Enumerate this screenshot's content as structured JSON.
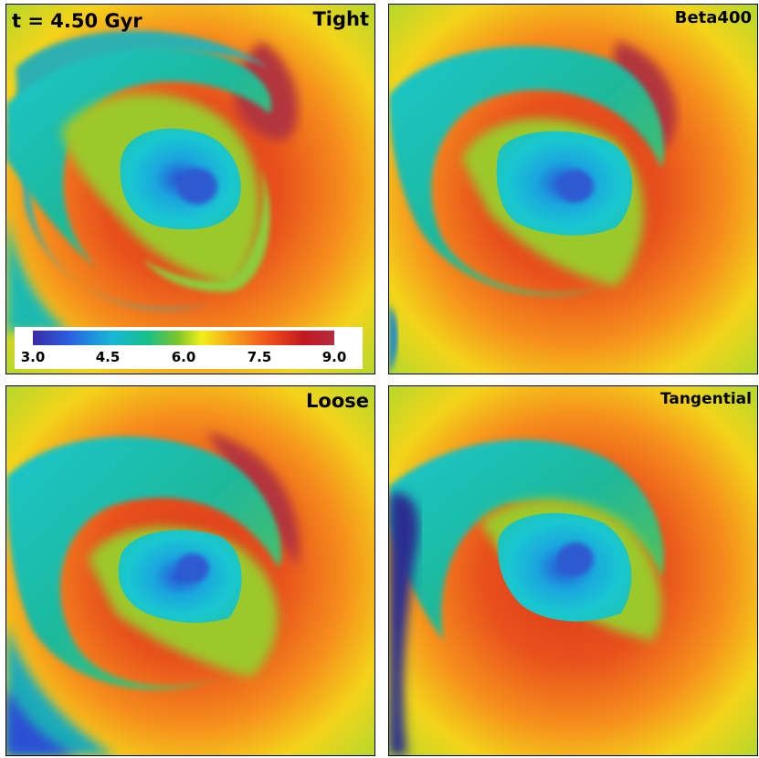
{
  "panels": [
    {
      "id": "tight",
      "label": "Tight",
      "time_label": "t = 4.50 Gyr"
    },
    {
      "id": "beta400",
      "label": "Beta400"
    },
    {
      "id": "loose",
      "label": "Loose"
    },
    {
      "id": "tangential",
      "label": "Tangential"
    }
  ],
  "colorbar": {
    "ticks": [
      "3.0",
      "4.5",
      "6.0",
      "7.5",
      "9.0"
    ],
    "colors": [
      "#3a2aa8",
      "#17b6d8",
      "#7bc52a",
      "#f3f01a",
      "#f8a21a",
      "#c0181f"
    ]
  }
}
